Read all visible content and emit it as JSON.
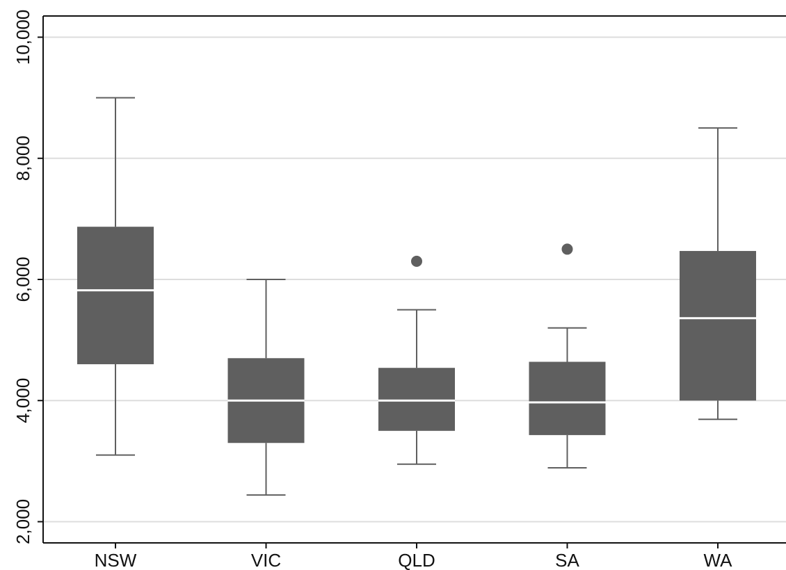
{
  "chart_data": {
    "type": "boxplot",
    "categories": [
      "NSW",
      "VIC",
      "QLD",
      "SA",
      "WA"
    ],
    "boxes": [
      {
        "category": "NSW",
        "whisker_low": 3100,
        "q1": 4600,
        "median": 5820,
        "q3": 6870,
        "whisker_high": 9000,
        "outliers": []
      },
      {
        "category": "VIC",
        "whisker_low": 2440,
        "q1": 3300,
        "median": 4000,
        "q3": 4700,
        "whisker_high": 6000,
        "outliers": []
      },
      {
        "category": "QLD",
        "whisker_low": 2950,
        "q1": 3500,
        "median": 4000,
        "q3": 4540,
        "whisker_high": 5500,
        "outliers": [
          6300
        ]
      },
      {
        "category": "SA",
        "whisker_low": 2890,
        "q1": 3430,
        "median": 3970,
        "q3": 4640,
        "whisker_high": 5200,
        "outliers": [
          6500
        ]
      },
      {
        "category": "WA",
        "whisker_low": 3690,
        "q1": 4000,
        "median": 5360,
        "q3": 6470,
        "whisker_high": 8500,
        "outliers": []
      }
    ],
    "yticks": [
      "2,000",
      "4,000",
      "6,000",
      "8,000",
      "10,000"
    ],
    "ytick_values": [
      2000,
      4000,
      6000,
      8000,
      10000
    ],
    "ylim": [
      1650,
      10350
    ],
    "grid": true,
    "colors": {
      "box": "#5f5f5f",
      "median": "#ffffff",
      "whisker": "#5f5f5f",
      "grid": "#dddddd",
      "axis": "#111111"
    }
  }
}
